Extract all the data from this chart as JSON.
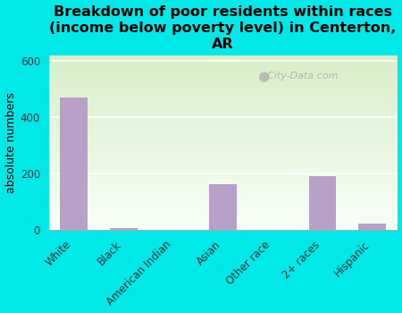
{
  "categories": [
    "White",
    "Black",
    "American Indian",
    "Asian",
    "Other race",
    "2+ races",
    "Hispanic"
  ],
  "values": [
    470,
    7,
    0,
    163,
    0,
    190,
    22
  ],
  "bar_color": "#b8a0c8",
  "title": "Breakdown of poor residents within races\n(income below poverty level) in Centerton,\nAR",
  "ylabel": "absolute numbers",
  "ylim": [
    0,
    620
  ],
  "yticks": [
    0,
    200,
    400,
    600
  ],
  "background_color": "#00e8e8",
  "plot_bg_color_top": "#d8eec8",
  "plot_bg_color_bottom": "#f8fff8",
  "watermark": "City-Data.com",
  "title_fontsize": 11.5,
  "ylabel_fontsize": 9,
  "tick_fontsize": 8.5
}
